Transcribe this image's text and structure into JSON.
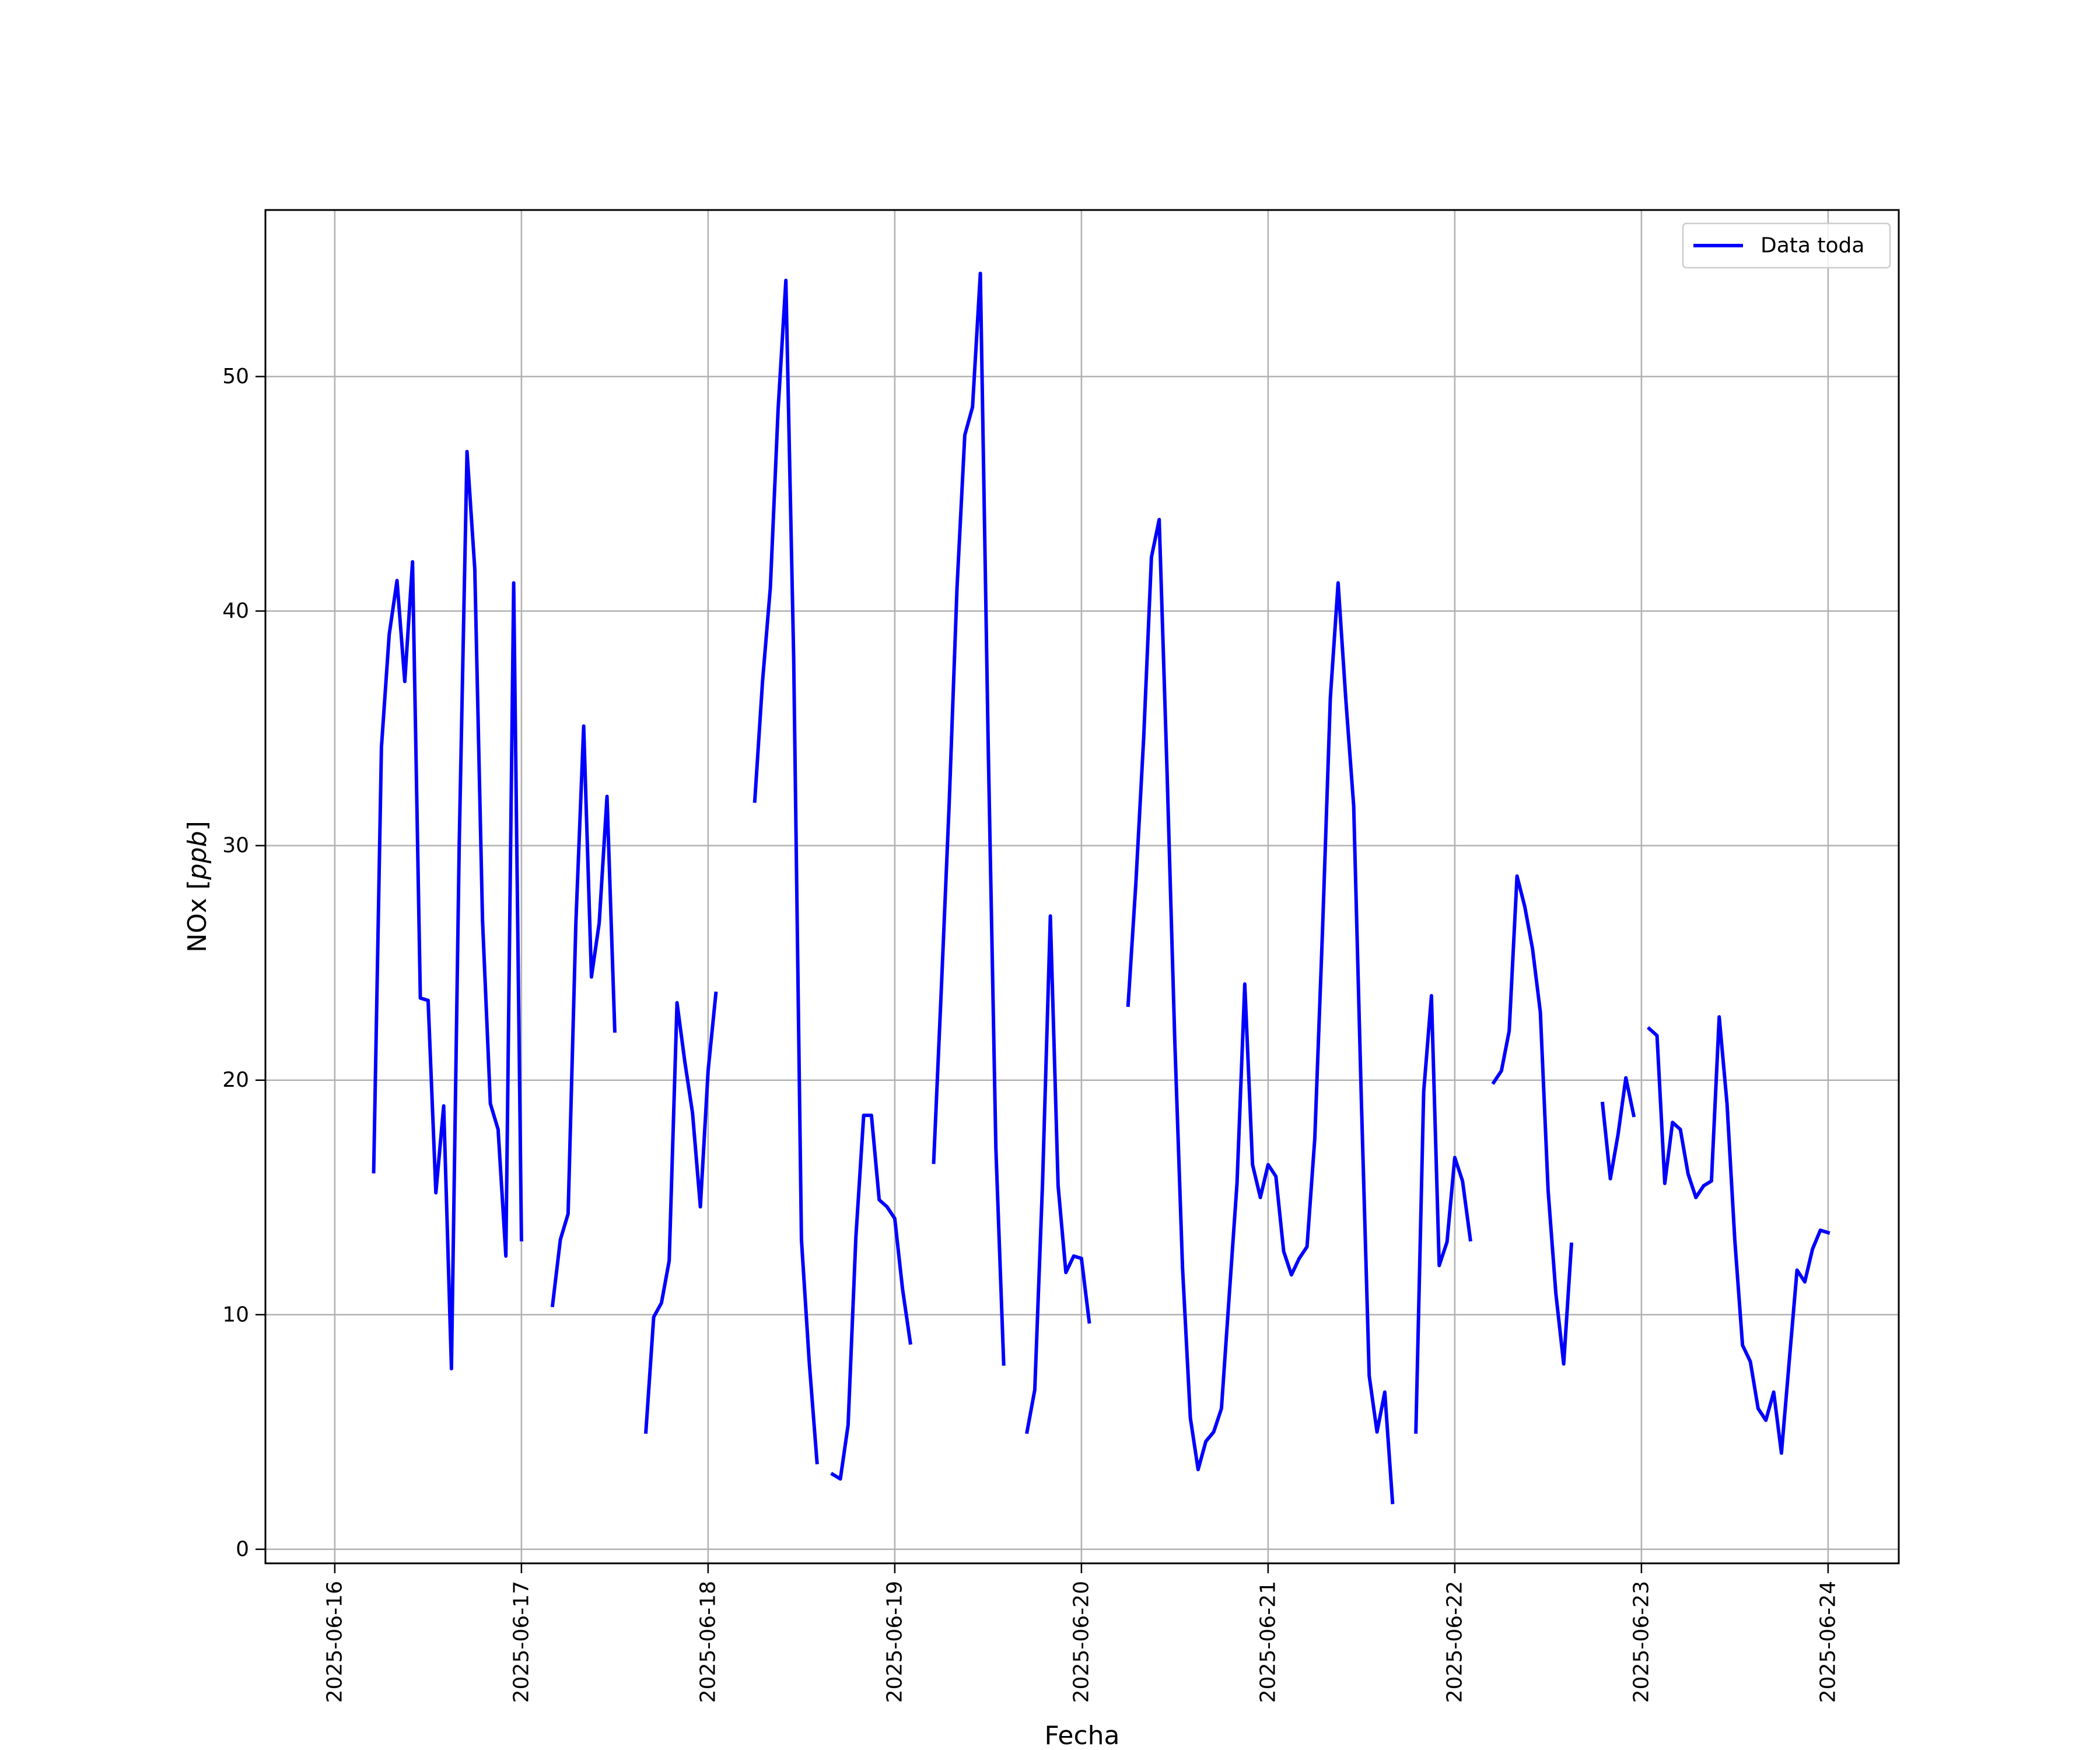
{
  "chart_data": {
    "type": "line",
    "xlabel": "Fecha",
    "ylabel": "NOx [ppb]",
    "ylabel_parts": {
      "prefix": "NOx ",
      "italic": "ppb"
    },
    "x_type": "datetime",
    "xlim": [
      "2025-06-15 15:05",
      "2025-06-24 09:05"
    ],
    "ylim": [
      -0.6,
      57.1
    ],
    "xticks": [
      "2025-06-16",
      "2025-06-17",
      "2025-06-18",
      "2025-06-19",
      "2025-06-20",
      "2025-06-21",
      "2025-06-22",
      "2025-06-23",
      "2025-06-24"
    ],
    "yticks": [
      0,
      10,
      20,
      30,
      40,
      50
    ],
    "grid": true,
    "legend": {
      "placement": "top-right",
      "entries": [
        "Data toda"
      ]
    },
    "series": [
      {
        "name": "Data toda",
        "color": "#0000ff",
        "segments": [
          [
            [
              "2025-06-16 05:00",
              16.1
            ],
            [
              "2025-06-16 06:00",
              34.2
            ],
            [
              "2025-06-16 07:00",
              39.0
            ],
            [
              "2025-06-16 08:00",
              41.3
            ],
            [
              "2025-06-16 09:00",
              37.0
            ],
            [
              "2025-06-16 10:00",
              42.1
            ],
            [
              "2025-06-16 11:00",
              23.5
            ],
            [
              "2025-06-16 12:00",
              23.4
            ],
            [
              "2025-06-16 13:00",
              15.2
            ],
            [
              "2025-06-16 14:00",
              18.9
            ],
            [
              "2025-06-16 15:00",
              7.7
            ],
            [
              "2025-06-16 16:00",
              30.0
            ],
            [
              "2025-06-16 17:00",
              46.8
            ],
            [
              "2025-06-16 18:00",
              41.8
            ],
            [
              "2025-06-16 19:00",
              26.8
            ],
            [
              "2025-06-16 20:00",
              19.0
            ],
            [
              "2025-06-16 21:00",
              17.9
            ],
            [
              "2025-06-16 22:00",
              12.5
            ],
            [
              "2025-06-16 23:00",
              41.2
            ],
            [
              "2025-06-17 00:00",
              13.2
            ]
          ],
          [
            [
              "2025-06-17 04:00",
              10.4
            ],
            [
              "2025-06-17 05:00",
              13.2
            ],
            [
              "2025-06-17 06:00",
              14.3
            ],
            [
              "2025-06-17 07:00",
              26.7
            ],
            [
              "2025-06-17 08:00",
              35.1
            ],
            [
              "2025-06-17 09:00",
              24.4
            ],
            [
              "2025-06-17 10:00",
              26.7
            ],
            [
              "2025-06-17 11:00",
              32.1
            ],
            [
              "2025-06-17 12:00",
              22.1
            ]
          ],
          [
            [
              "2025-06-17 16:00",
              5.0
            ],
            [
              "2025-06-17 17:00",
              9.9
            ],
            [
              "2025-06-17 18:00",
              10.5
            ],
            [
              "2025-06-17 19:00",
              12.3
            ],
            [
              "2025-06-17 20:00",
              23.3
            ],
            [
              "2025-06-17 21:00",
              20.8
            ],
            [
              "2025-06-17 22:00",
              18.6
            ],
            [
              "2025-06-17 23:00",
              14.6
            ],
            [
              "2025-06-18 00:00",
              20.4
            ],
            [
              "2025-06-18 01:00",
              23.7
            ]
          ],
          [
            [
              "2025-06-18 06:00",
              31.9
            ],
            [
              "2025-06-18 07:00",
              37.0
            ],
            [
              "2025-06-18 08:00",
              41.0
            ],
            [
              "2025-06-18 09:00",
              48.6
            ],
            [
              "2025-06-18 10:00",
              54.1
            ],
            [
              "2025-06-18 11:00",
              38.0
            ],
            [
              "2025-06-18 12:00",
              13.2
            ],
            [
              "2025-06-18 13:00",
              8.0
            ],
            [
              "2025-06-18 14:00",
              3.7
            ]
          ],
          [
            [
              "2025-06-18 16:00",
              3.2
            ],
            [
              "2025-06-18 17:00",
              3.0
            ],
            [
              "2025-06-18 18:00",
              5.3
            ],
            [
              "2025-06-18 19:00",
              13.3
            ],
            [
              "2025-06-18 20:00",
              18.5
            ],
            [
              "2025-06-18 21:00",
              18.5
            ],
            [
              "2025-06-18 22:00",
              14.9
            ],
            [
              "2025-06-18 23:00",
              14.6
            ],
            [
              "2025-06-19 00:00",
              14.1
            ],
            [
              "2025-06-19 01:00",
              11.1
            ],
            [
              "2025-06-19 02:00",
              8.8
            ]
          ],
          [
            [
              "2025-06-19 05:00",
              16.5
            ],
            [
              "2025-06-19 06:00",
              24.0
            ],
            [
              "2025-06-19 07:00",
              31.8
            ],
            [
              "2025-06-19 08:00",
              41.0
            ],
            [
              "2025-06-19 09:00",
              47.5
            ],
            [
              "2025-06-19 10:00",
              48.7
            ],
            [
              "2025-06-19 11:00",
              54.4
            ],
            [
              "2025-06-19 12:00",
              34.5
            ],
            [
              "2025-06-19 13:00",
              17.1
            ],
            [
              "2025-06-19 14:00",
              7.9
            ]
          ],
          [
            [
              "2025-06-19 17:00",
              5.0
            ],
            [
              "2025-06-19 18:00",
              6.8
            ],
            [
              "2025-06-19 19:00",
              15.6
            ],
            [
              "2025-06-19 20:00",
              27.0
            ],
            [
              "2025-06-19 21:00",
              15.5
            ],
            [
              "2025-06-19 22:00",
              11.8
            ],
            [
              "2025-06-19 23:00",
              12.5
            ],
            [
              "2025-06-20 00:00",
              12.4
            ],
            [
              "2025-06-20 01:00",
              9.7
            ]
          ],
          [
            [
              "2025-06-20 06:00",
              23.2
            ],
            [
              "2025-06-20 07:00",
              28.4
            ],
            [
              "2025-06-20 08:00",
              34.6
            ],
            [
              "2025-06-20 09:00",
              42.3
            ],
            [
              "2025-06-20 10:00",
              43.9
            ],
            [
              "2025-06-20 11:00",
              33.2
            ],
            [
              "2025-06-20 12:00",
              21.7
            ],
            [
              "2025-06-20 13:00",
              12.0
            ],
            [
              "2025-06-20 14:00",
              5.6
            ],
            [
              "2025-06-20 15:00",
              3.4
            ],
            [
              "2025-06-20 16:00",
              4.6
            ],
            [
              "2025-06-20 17:00",
              5.0
            ],
            [
              "2025-06-20 18:00",
              6.0
            ],
            [
              "2025-06-20 19:00",
              10.8
            ],
            [
              "2025-06-20 20:00",
              15.6
            ],
            [
              "2025-06-20 21:00",
              24.1
            ],
            [
              "2025-06-20 22:00",
              16.4
            ],
            [
              "2025-06-20 23:00",
              15.0
            ],
            [
              "2025-06-21 00:00",
              16.4
            ],
            [
              "2025-06-21 01:00",
              15.9
            ],
            [
              "2025-06-21 02:00",
              12.7
            ],
            [
              "2025-06-21 03:00",
              11.7
            ],
            [
              "2025-06-21 04:00",
              12.4
            ],
            [
              "2025-06-21 05:00",
              12.9
            ],
            [
              "2025-06-21 06:00",
              17.5
            ],
            [
              "2025-06-21 07:00",
              26.4
            ],
            [
              "2025-06-21 08:00",
              36.3
            ],
            [
              "2025-06-21 09:00",
              41.2
            ],
            [
              "2025-06-21 10:00",
              36.2
            ],
            [
              "2025-06-21 11:00",
              31.7
            ],
            [
              "2025-06-21 12:00",
              19.0
            ],
            [
              "2025-06-21 13:00",
              7.4
            ],
            [
              "2025-06-21 14:00",
              5.0
            ],
            [
              "2025-06-21 15:00",
              6.7
            ],
            [
              "2025-06-21 16:00",
              2.0
            ]
          ],
          [
            [
              "2025-06-21 19:00",
              5.0
            ],
            [
              "2025-06-21 20:00",
              19.5
            ],
            [
              "2025-06-21 21:00",
              23.6
            ],
            [
              "2025-06-21 22:00",
              12.1
            ],
            [
              "2025-06-21 23:00",
              13.1
            ],
            [
              "2025-06-22 00:00",
              16.7
            ],
            [
              "2025-06-22 01:00",
              15.7
            ],
            [
              "2025-06-22 02:00",
              13.2
            ]
          ],
          [
            [
              "2025-06-22 05:00",
              19.9
            ],
            [
              "2025-06-22 06:00",
              20.4
            ],
            [
              "2025-06-22 07:00",
              22.1
            ],
            [
              "2025-06-22 08:00",
              28.7
            ],
            [
              "2025-06-22 09:00",
              27.4
            ],
            [
              "2025-06-22 10:00",
              25.6
            ],
            [
              "2025-06-22 11:00",
              22.9
            ],
            [
              "2025-06-22 12:00",
              15.3
            ],
            [
              "2025-06-22 13:00",
              10.9
            ],
            [
              "2025-06-22 14:00",
              7.9
            ],
            [
              "2025-06-22 15:00",
              13.0
            ]
          ],
          [
            [
              "2025-06-22 19:00",
              19.0
            ],
            [
              "2025-06-22 20:00",
              15.8
            ],
            [
              "2025-06-22 21:00",
              17.7
            ],
            [
              "2025-06-22 22:00",
              20.1
            ],
            [
              "2025-06-22 23:00",
              18.5
            ]
          ],
          [
            [
              "2025-06-23 01:00",
              22.2
            ],
            [
              "2025-06-23 02:00",
              21.9
            ],
            [
              "2025-06-23 03:00",
              15.6
            ],
            [
              "2025-06-23 04:00",
              18.2
            ],
            [
              "2025-06-23 05:00",
              17.9
            ],
            [
              "2025-06-23 06:00",
              16.0
            ],
            [
              "2025-06-23 07:00",
              15.0
            ],
            [
              "2025-06-23 08:00",
              15.5
            ],
            [
              "2025-06-23 09:00",
              15.7
            ],
            [
              "2025-06-23 10:00",
              22.7
            ],
            [
              "2025-06-23 11:00",
              19.0
            ],
            [
              "2025-06-23 12:00",
              13.2
            ],
            [
              "2025-06-23 13:00",
              8.7
            ],
            [
              "2025-06-23 14:00",
              8.0
            ],
            [
              "2025-06-23 15:00",
              6.0
            ],
            [
              "2025-06-23 16:00",
              5.5
            ],
            [
              "2025-06-23 17:00",
              6.7
            ],
            [
              "2025-06-23 18:00",
              4.1
            ],
            [
              "2025-06-23 19:00",
              8.0
            ],
            [
              "2025-06-23 20:00",
              11.9
            ],
            [
              "2025-06-23 21:00",
              11.4
            ],
            [
              "2025-06-23 22:00",
              12.8
            ],
            [
              "2025-06-23 23:00",
              13.6
            ],
            [
              "2025-06-24 00:00",
              13.5
            ]
          ]
        ]
      }
    ]
  }
}
